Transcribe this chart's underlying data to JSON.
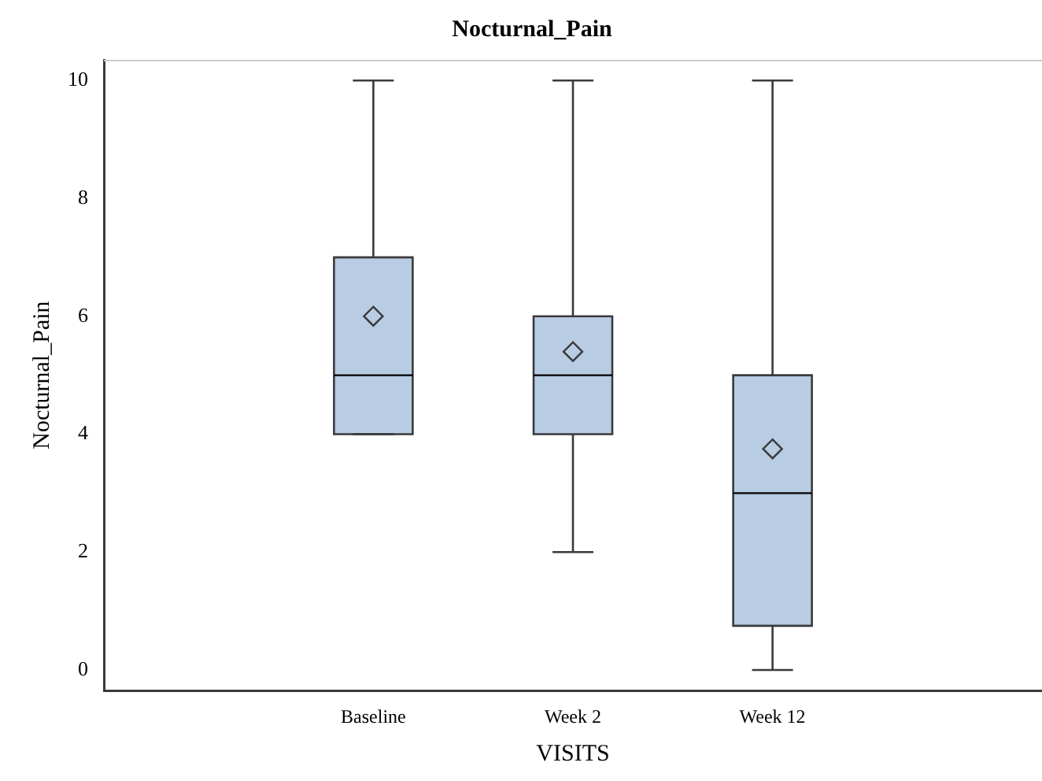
{
  "chart_data": {
    "type": "box",
    "title": "Nocturnal_Pain",
    "xlabel": "VISITS",
    "ylabel": "Nocturnal_Pain",
    "categories": [
      "Baseline",
      "Week 2",
      "Week 12"
    ],
    "color": "#b8cce4",
    "boxes": [
      {
        "low": 4,
        "q1": 4,
        "median": 5,
        "q3": 7,
        "high": 10,
        "mean": 6
      },
      {
        "low": 2,
        "q1": 4,
        "median": 5,
        "q3": 6,
        "high": 10,
        "mean": 5.4
      },
      {
        "low": 0,
        "q1": 0.75,
        "median": 3,
        "q3": 5,
        "high": 10,
        "mean": 3.75
      }
    ],
    "ylim": [
      -0.35,
      10.35
    ],
    "yticks": [
      0,
      2,
      4,
      6,
      8,
      10
    ]
  }
}
